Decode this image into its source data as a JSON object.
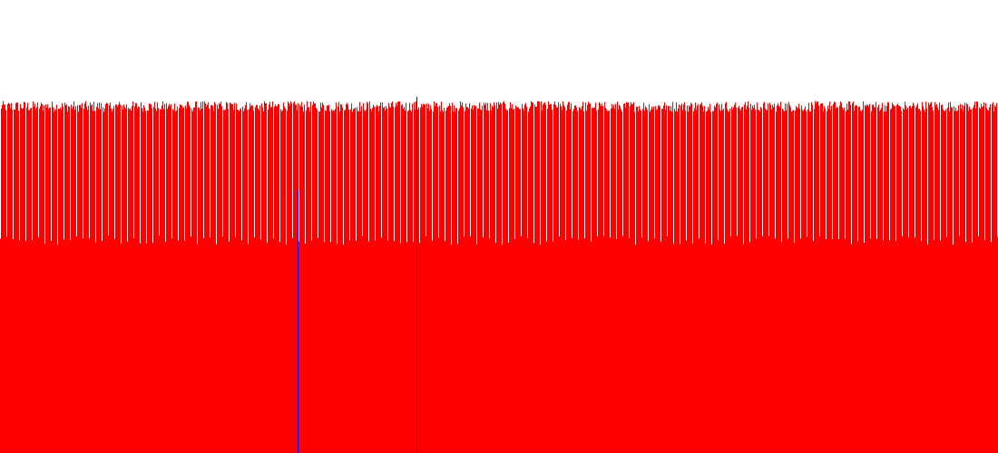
{
  "chart_data": {
    "type": "bar",
    "title": "",
    "xlabel": "",
    "ylabel": "",
    "grid": false,
    "legend": "none",
    "ylim": [
      0,
      100
    ],
    "bar_count": 1100,
    "value_range": [
      74,
      80
    ],
    "series": [
      {
        "color": "#ff0000",
        "values_pattern": {
          "base": 76.5,
          "jitter": 1.2,
          "dip_every": 7,
          "dip_values": [
            46,
            48
          ]
        }
      }
    ],
    "highlight_bars": [
      {
        "index": 328,
        "value": 58,
        "color": "#0000ff"
      },
      {
        "index": 459,
        "value": 78.6,
        "color": "#0000ff"
      }
    ]
  },
  "colors": {
    "background": "#ffffff",
    "bars": "#ff0000",
    "highlight": "#0000ff"
  }
}
